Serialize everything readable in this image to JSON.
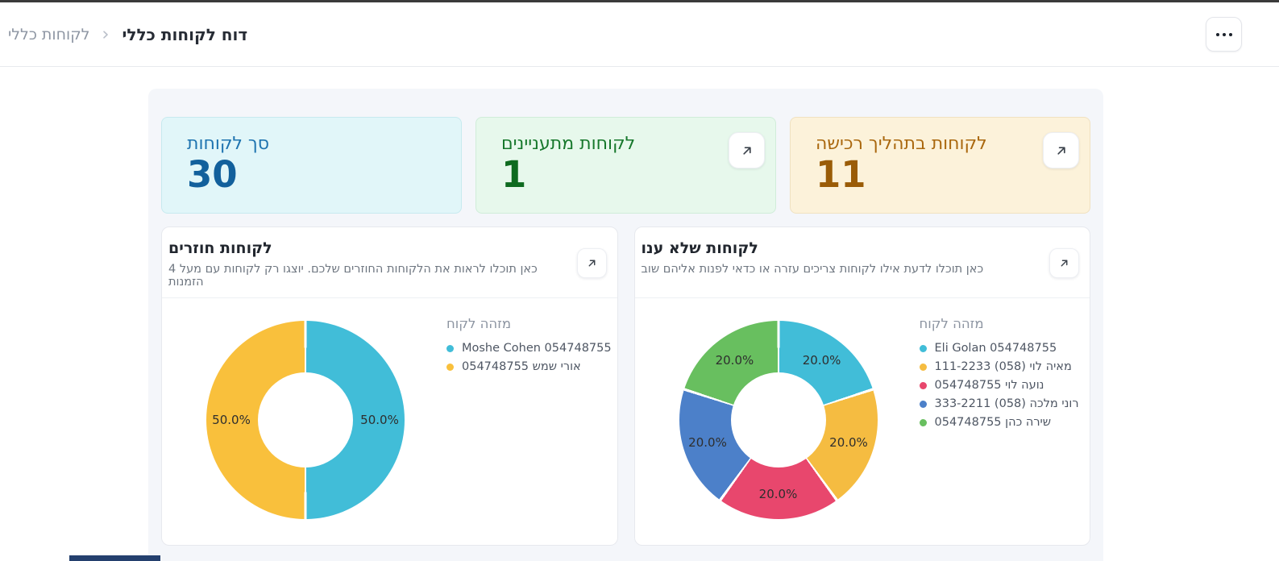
{
  "window": {
    "top_strip_color": "#3b3b3b"
  },
  "header": {
    "breadcrumb": [
      {
        "label": "דוח לקוחות כללי"
      },
      {
        "label": "לקוחות כללי"
      }
    ]
  },
  "kpis": [
    {
      "title": "סך לקוחות",
      "value": "30",
      "bg": "#e1f6f9",
      "border": "#c7eaef",
      "title_color": "#1f74b0",
      "value_color": "#12609c",
      "expand": false
    },
    {
      "title": "לקוחות מתעניינים",
      "value": "1",
      "bg": "#e7f8ec",
      "border": "#d0edd9",
      "title_color": "#17782c",
      "value_color": "#0e6a1f",
      "expand": true
    },
    {
      "title": "לקוחות בתהליך רכישה",
      "value": "11",
      "bg": "#fcf2da",
      "border": "#f0e1c0",
      "title_color": "#aa680f",
      "value_color": "#9a5c07",
      "expand": true
    }
  ],
  "charts": [
    {
      "title": "לקוחות חוזרים",
      "subtitle": "כאן תוכלו לראות את הלקוחות החוזרים שלכם. יוצגו רק לקוחות עם מעל 4 הזמנות",
      "legend_title": "מזהה לקוח"
    },
    {
      "title": "לקוחות שלא ענו",
      "subtitle": "כאן תוכלו לדעת אילו לקוחות צריכים עזרה או כדאי לפנות אליהם שוב",
      "legend_title": "מזהה לקוח"
    }
  ],
  "chart_data": [
    {
      "type": "pie",
      "donut": true,
      "title": "לקוחות חוזרים",
      "legend_title": "מזהה לקוח",
      "legend_position": "right",
      "unit": "%",
      "labels": [
        "Moshe Cohen 054748755",
        "אורי שמש 054748755"
      ],
      "values": [
        50.0,
        50.0
      ],
      "colors": [
        "#41bdd8",
        "#f9c03c"
      ]
    },
    {
      "type": "pie",
      "donut": true,
      "title": "לקוחות שלא ענו",
      "legend_title": "מזהה לקוח",
      "legend_position": "right",
      "unit": "%",
      "labels": [
        "Eli Golan 054748755",
        "מאיה לוי (058) 111-2233",
        "נועה לוי 054748755",
        "רוני מלכה (058) 333-2211",
        "שירה כהן 054748755"
      ],
      "values": [
        20.0,
        20.0,
        20.0,
        20.0,
        20.0
      ],
      "colors": [
        "#41bdd8",
        "#f5bc41",
        "#e8476d",
        "#4c80c9",
        "#68bf5f"
      ]
    }
  ]
}
